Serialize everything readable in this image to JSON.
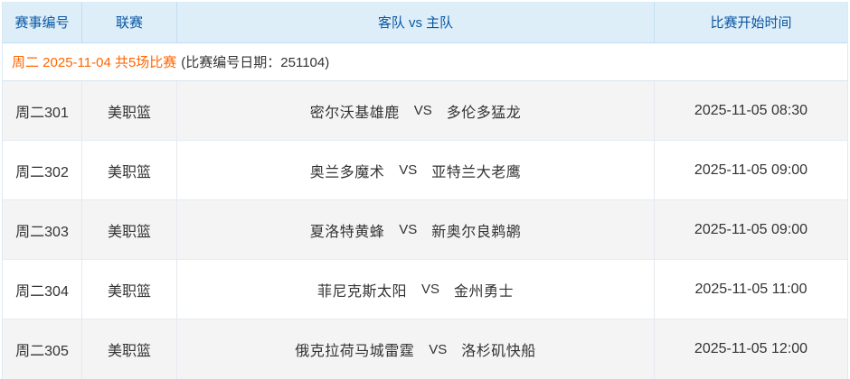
{
  "table": {
    "headers": {
      "match_id": "赛事编号",
      "league": "联赛",
      "teams": "客队 vs 主队",
      "start_time": "比赛开始时间"
    },
    "summary": {
      "highlight": "周二 2025-11-04 共5场比赛",
      "note": "(比赛编号日期：251104)"
    },
    "vs_label": "VS",
    "rows": [
      {
        "id": "周二301",
        "league": "美职篮",
        "away": "密尔沃基雄鹿",
        "home": "多伦多猛龙",
        "time": "2025-11-05 08:30"
      },
      {
        "id": "周二302",
        "league": "美职篮",
        "away": "奥兰多魔术",
        "home": "亚特兰大老鹰",
        "time": "2025-11-05 09:00"
      },
      {
        "id": "周二303",
        "league": "美职篮",
        "away": "夏洛特黄蜂",
        "home": "新奥尔良鹈鹕",
        "time": "2025-11-05 09:00"
      },
      {
        "id": "周二304",
        "league": "美职篮",
        "away": "菲尼克斯太阳",
        "home": "金州勇士",
        "time": "2025-11-05 11:00"
      },
      {
        "id": "周二305",
        "league": "美职篮",
        "away": "俄克拉荷马城雷霆",
        "home": "洛杉矶快船",
        "time": "2025-11-05 12:00"
      }
    ],
    "colors": {
      "header_bg": "#ddeef9",
      "header_text": "#0b57a2",
      "highlight_text": "#ff6600",
      "row_alt_bg": "#f4f4f4",
      "body_text": "#333333"
    }
  }
}
